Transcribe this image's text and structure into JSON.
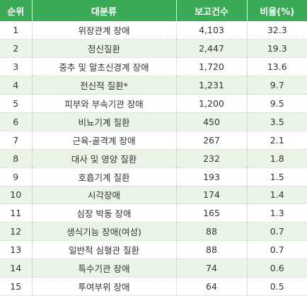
{
  "table": {
    "headers": {
      "rank": "순위",
      "category": "대분류",
      "count": "보고건수",
      "ratio": "비율(%)"
    },
    "rows": [
      {
        "rank": "1",
        "category": "위장관계 장애",
        "count": "4,103",
        "ratio": "32.3"
      },
      {
        "rank": "2",
        "category": "정신질환",
        "count": "2,447",
        "ratio": "19.3"
      },
      {
        "rank": "3",
        "category": "중추 및 말초신경계 장애",
        "count": "1,720",
        "ratio": "13.6"
      },
      {
        "rank": "4",
        "category": "전신적 질환*",
        "count": "1,231",
        "ratio": "9.7"
      },
      {
        "rank": "5",
        "category": "피부와 부속기관 장애",
        "count": "1,200",
        "ratio": "9.5"
      },
      {
        "rank": "6",
        "category": "비뇨기계 질환",
        "count": "450",
        "ratio": "3.5"
      },
      {
        "rank": "7",
        "category": "근육-골격계 장애",
        "count": "267",
        "ratio": "2.1"
      },
      {
        "rank": "8",
        "category": "대사 및 영양 질환",
        "count": "232",
        "ratio": "1.8"
      },
      {
        "rank": "9",
        "category": "호흡기계 질환",
        "count": "193",
        "ratio": "1.5"
      },
      {
        "rank": "10",
        "category": "시각장애",
        "count": "174",
        "ratio": "1.4"
      },
      {
        "rank": "11",
        "category": "심장 박동 장애",
        "count": "165",
        "ratio": "1.3"
      },
      {
        "rank": "12",
        "category": "생식기능 장애(여성)",
        "count": "88",
        "ratio": "0.7"
      },
      {
        "rank": "13",
        "category": "일반적 심혈관 질환",
        "count": "88",
        "ratio": "0.7"
      },
      {
        "rank": "14",
        "category": "특수기관 장애",
        "count": "74",
        "ratio": "0.6"
      },
      {
        "rank": "15",
        "category": "투여부위 장애",
        "count": "64",
        "ratio": "0.5"
      }
    ]
  },
  "colors": {
    "header_bg": "#3aaa57",
    "header_text": "#ffffff",
    "stripe_bg": "#eaf4e7",
    "body_text": "#333333"
  }
}
